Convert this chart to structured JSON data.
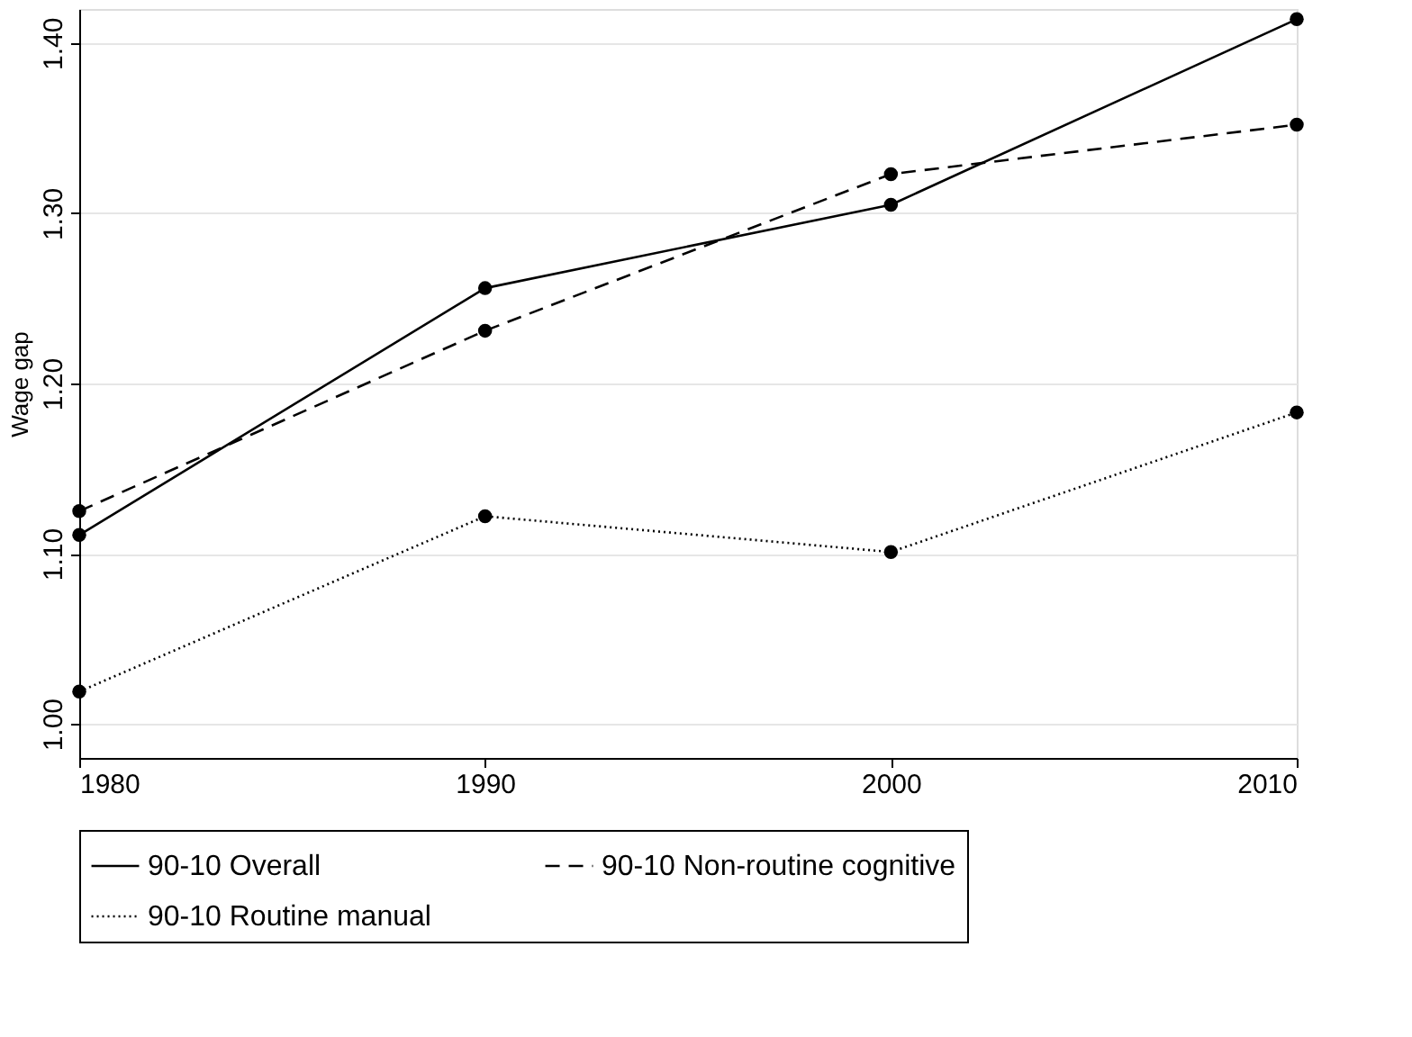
{
  "chart_data": {
    "type": "line",
    "ylabel": "Wage gap",
    "x": [
      1980,
      1990,
      2000,
      2010
    ],
    "xlim": [
      1980,
      2010
    ],
    "xticks": [
      1980,
      1990,
      2000,
      2010
    ],
    "ylim": [
      0.98,
      1.42
    ],
    "yticks": [
      {
        "value": 1.0,
        "label": "1.00"
      },
      {
        "value": 1.1,
        "label": "1.10"
      },
      {
        "value": 1.2,
        "label": "1.20"
      },
      {
        "value": 1.3,
        "label": "1.30"
      },
      {
        "value": 1.4,
        "label": "1.40"
      }
    ],
    "grid": "y",
    "legend": "bottom",
    "marker": "circle",
    "series": [
      {
        "name": "90-10 Overall",
        "color": "#000000",
        "line_style": "solid",
        "values": [
          1.111,
          1.256,
          1.305,
          1.414
        ]
      },
      {
        "name": "90-10 Non-routine cognitive",
        "color": "#000000",
        "line_style": "dashed",
        "values": [
          1.125,
          1.231,
          1.323,
          1.352
        ]
      },
      {
        "name": "90-10 Routine manual",
        "color": "#000000",
        "line_style": "dotted",
        "values": [
          1.019,
          1.122,
          1.101,
          1.183
        ]
      }
    ]
  }
}
